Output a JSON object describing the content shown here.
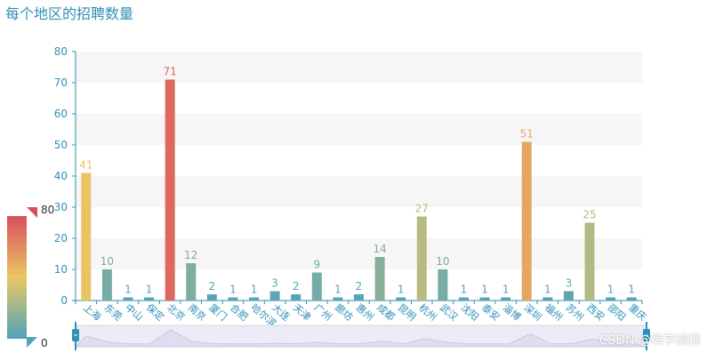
{
  "title": "每个地区的招聘数量",
  "watermark": "CSDN @嗨学编程",
  "chart_data": {
    "type": "bar",
    "title": "每个地区的招聘数量",
    "xlabel": "",
    "ylabel": "",
    "categories": [
      "上海",
      "东莞",
      "中山",
      "保定",
      "北京",
      "南京",
      "厦门",
      "合肥",
      "哈尔滨",
      "大连",
      "天津",
      "广州",
      "廊坊",
      "惠州",
      "成都",
      "昆明",
      "杭州",
      "武汉",
      "沈阳",
      "泰安",
      "淄博",
      "深圳",
      "福州",
      "苏州",
      "西安",
      "邵阳",
      "重庆"
    ],
    "values": [
      41,
      10,
      1,
      1,
      71,
      12,
      2,
      1,
      1,
      3,
      2,
      9,
      1,
      2,
      14,
      1,
      27,
      10,
      1,
      1,
      1,
      51,
      1,
      3,
      25,
      1,
      1
    ],
    "ylim": [
      0,
      80
    ],
    "yticks": [
      0,
      10,
      20,
      30,
      40,
      50,
      60,
      70,
      80
    ],
    "grid": "horizontal bands",
    "visual_map": {
      "min": 0,
      "max": 80,
      "min_label": "0",
      "max_label": "80",
      "colors": [
        "#50a3ba",
        "#eac763",
        "#d94e5d"
      ]
    },
    "axis_color": "#2f8fb6",
    "datazoom": {
      "start": 0,
      "end": 100
    }
  }
}
